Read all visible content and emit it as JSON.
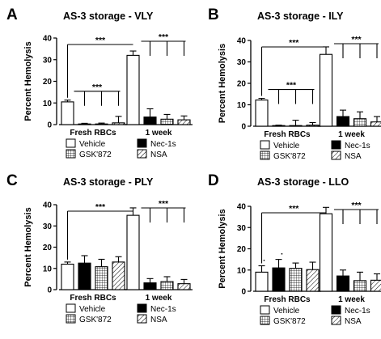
{
  "legend": {
    "items": [
      {
        "label": "Vehicle",
        "fill": "white"
      },
      {
        "label": "Nec-1s",
        "fill": "black"
      },
      {
        "label": "GSK'872",
        "fill": "grid"
      },
      {
        "label": "NSA",
        "fill": "hatch"
      }
    ]
  },
  "colors": {
    "bar_outline": "#000000",
    "solid": "#000000",
    "background": "#ffffff"
  },
  "chart_data": [
    {
      "type": "bar",
      "panel": "A",
      "title": "AS-3 storage - VLY",
      "ylabel": "Percent Hemolysis",
      "ylim": [
        0,
        40
      ],
      "yticks": [
        0,
        10,
        20,
        30,
        40
      ],
      "groups": [
        "Fresh RBCs",
        "1 week"
      ],
      "series": [
        {
          "name": "Vehicle",
          "values": [
            10.5,
            32
          ],
          "errors": [
            0.8,
            2.0
          ]
        },
        {
          "name": "Nec-1s",
          "values": [
            0.3,
            3.5
          ],
          "errors": [
            0.3,
            3.8
          ]
        },
        {
          "name": "GSK'872",
          "values": [
            0.3,
            2.5
          ],
          "errors": [
            0.4,
            2.2
          ]
        },
        {
          "name": "NSA",
          "values": [
            0.8,
            2.2
          ],
          "errors": [
            3.0,
            1.8
          ]
        }
      ],
      "significance": [
        "***",
        "***",
        "***"
      ]
    },
    {
      "type": "bar",
      "panel": "B",
      "title": "AS-3 storage - ILY",
      "ylabel": "Percent Hemolysis",
      "ylim": [
        0,
        40
      ],
      "yticks": [
        0,
        10,
        20,
        30,
        40
      ],
      "groups": [
        "Fresh RBCs",
        "1 week"
      ],
      "series": [
        {
          "name": "Vehicle",
          "values": [
            12.2,
            33.5
          ],
          "errors": [
            0.8,
            3.5
          ]
        },
        {
          "name": "Nec-1s",
          "values": [
            0.3,
            4.5
          ],
          "errors": [
            0.2,
            3.0
          ]
        },
        {
          "name": "GSK'872",
          "values": [
            0.3,
            3.5
          ],
          "errors": [
            2.5,
            3.2
          ]
        },
        {
          "name": "NSA",
          "values": [
            0.5,
            2.0
          ],
          "errors": [
            1.2,
            2.5
          ]
        }
      ],
      "significance": [
        "***",
        "***",
        "***"
      ]
    },
    {
      "type": "bar",
      "panel": "C",
      "title": "AS-3 storage - PLY",
      "ylabel": "Percent Hemolysis",
      "ylim": [
        0,
        40
      ],
      "yticks": [
        0,
        10,
        20,
        30,
        40
      ],
      "groups": [
        "Fresh RBCs",
        "1 week"
      ],
      "series": [
        {
          "name": "Vehicle",
          "values": [
            12,
            35
          ],
          "errors": [
            1.0,
            3.5
          ]
        },
        {
          "name": "Nec-1s",
          "values": [
            12.5,
            3.2
          ],
          "errors": [
            3.5,
            2.0
          ]
        },
        {
          "name": "GSK'872",
          "values": [
            10.8,
            3.8
          ],
          "errors": [
            3.5,
            2.3
          ]
        },
        {
          "name": "NSA",
          "values": [
            13,
            2.8
          ],
          "errors": [
            2.5,
            2.0
          ]
        }
      ],
      "significance": [
        "***",
        "***"
      ]
    },
    {
      "type": "bar",
      "panel": "D",
      "title": "AS-3 storage - LLO",
      "ylabel": "Percent Hemolysis",
      "ylim": [
        0,
        40
      ],
      "yticks": [
        0,
        10,
        20,
        30,
        40
      ],
      "groups": [
        "Fresh RBCs",
        "1 week"
      ],
      "series": [
        {
          "name": "Vehicle",
          "values": [
            9,
            36.5
          ],
          "errors": [
            3.0,
            3.0
          ]
        },
        {
          "name": "Nec-1s",
          "values": [
            11,
            7.2
          ],
          "errors": [
            4.0,
            2.8
          ]
        },
        {
          "name": "GSK'872",
          "values": [
            10.8,
            5.0
          ],
          "errors": [
            2.5,
            4.0
          ]
        },
        {
          "name": "NSA",
          "values": [
            10.2,
            5.2
          ],
          "errors": [
            3.5,
            3.0
          ]
        }
      ],
      "significance": [
        "***",
        "***"
      ],
      "annotations": [
        ".",
        "."
      ]
    }
  ]
}
